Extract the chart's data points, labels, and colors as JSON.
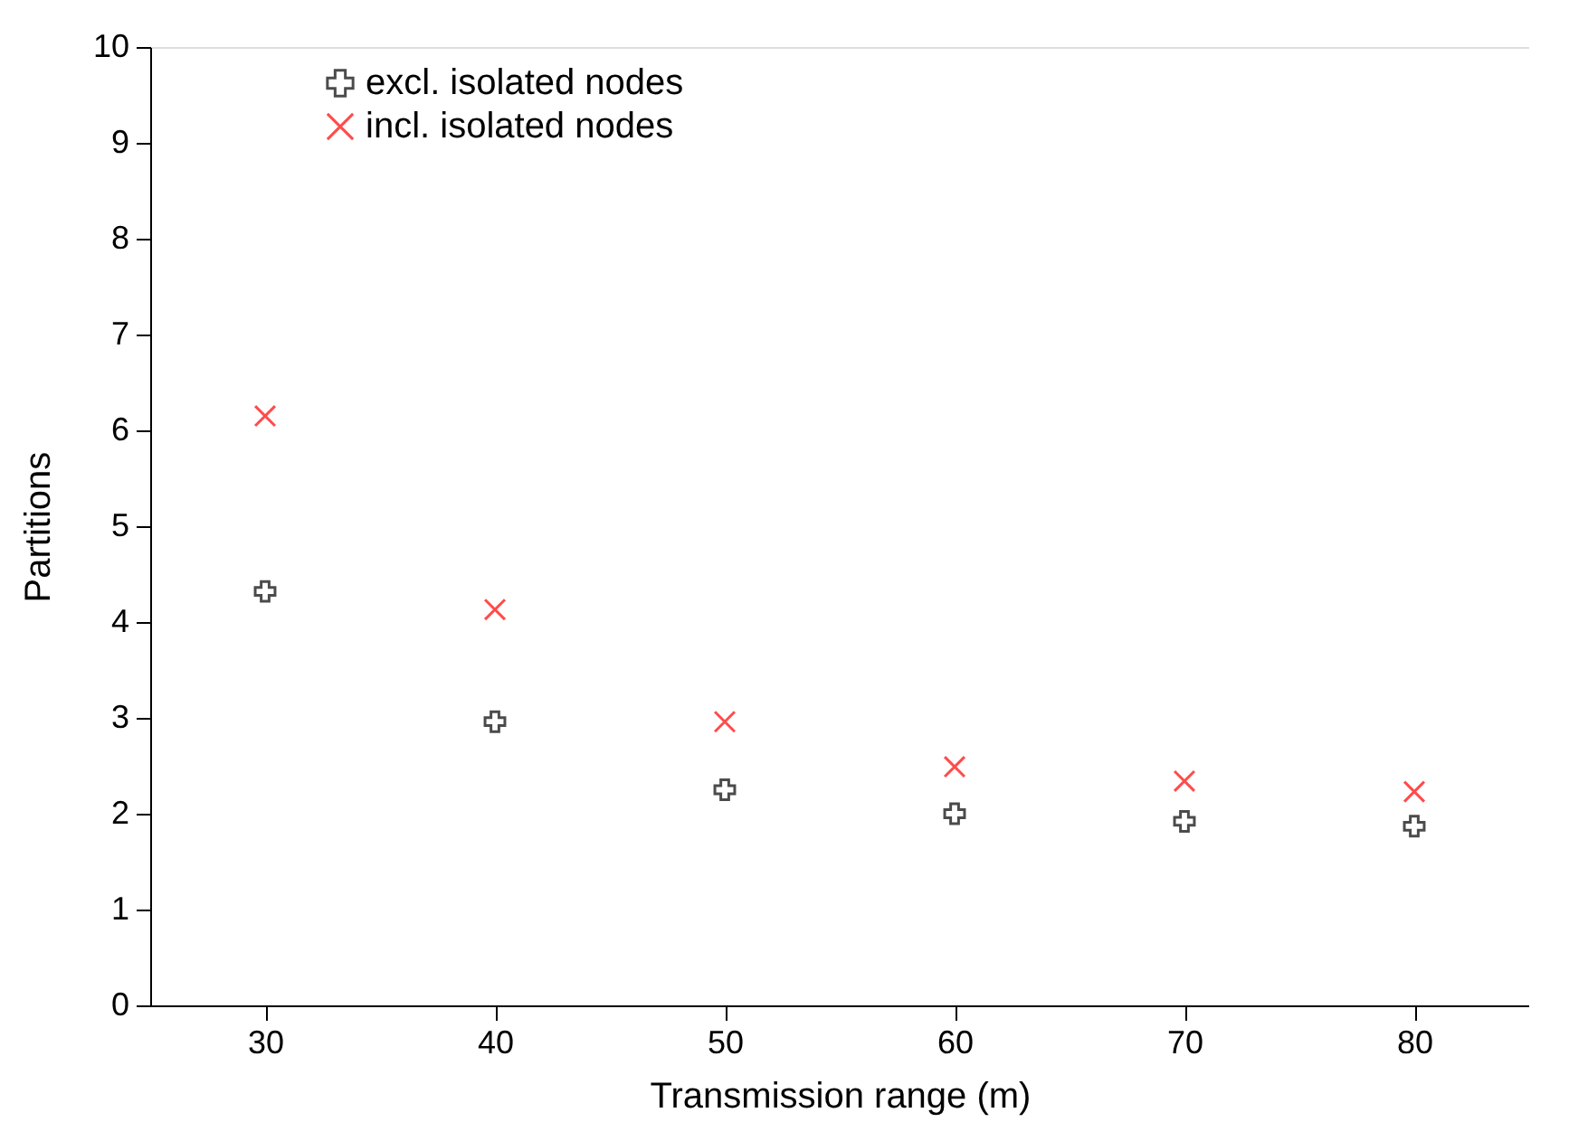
{
  "chart_data": {
    "type": "scatter",
    "xlabel": "Transmission range (m)",
    "ylabel": "Partitions",
    "x": [
      30,
      40,
      50,
      60,
      70,
      80
    ],
    "series": [
      {
        "name": "excl. isolated nodes",
        "color": "#000000",
        "marker": "cross",
        "values": [
          4.32,
          2.96,
          2.25,
          2.0,
          1.92,
          1.87
        ]
      },
      {
        "name": "incl. isolated nodes",
        "color": "#ff0000",
        "marker": "x",
        "values": [
          6.15,
          4.13,
          2.96,
          2.49,
          2.34,
          2.23
        ]
      }
    ],
    "xlim": [
      25,
      85
    ],
    "xticks": [
      30,
      40,
      50,
      60,
      70,
      80
    ],
    "ylim": [
      0,
      10
    ],
    "yticks": [
      0,
      1,
      2,
      3,
      4,
      5,
      6,
      7,
      8,
      9,
      10
    ],
    "grid": false,
    "legend": "top"
  }
}
